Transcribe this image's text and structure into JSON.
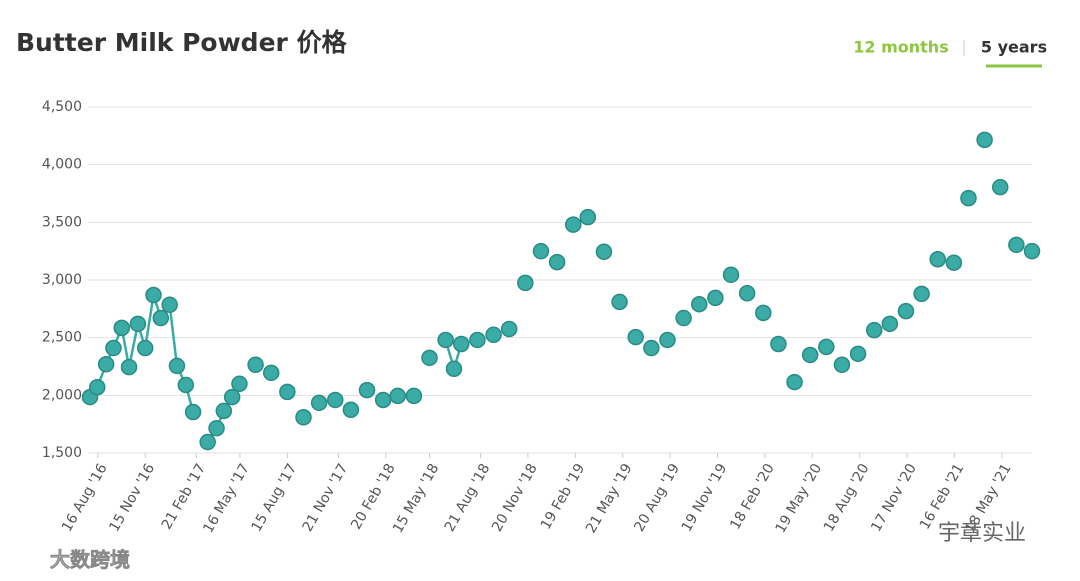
{
  "chart_data": {
    "type": "scatter-line",
    "title": "Butter Milk Powder 价格",
    "toggles": [
      "12 months",
      "5 years"
    ],
    "watermarks": [
      "大数跨境",
      "宇章实业"
    ],
    "color": "#3aaba5",
    "x": [
      "2016-08-01",
      "2016-08-15",
      "2016-09-01",
      "2016-09-15",
      "2016-10-01",
      "2016-10-15",
      "2016-11-01",
      "2016-11-15",
      "2016-12-01",
      "2016-12-15",
      "2017-01-01",
      "2017-01-15",
      "2017-02-01",
      "2017-02-15",
      "2017-03-15",
      "2017-04-01",
      "2017-04-15",
      "2017-05-01",
      "2017-05-15",
      "2017-06-15",
      "2017-07-15",
      "2017-08-15",
      "2017-09-15",
      "2017-10-15",
      "2017-11-15",
      "2017-12-15",
      "2018-01-15",
      "2018-02-15",
      "2018-03-15",
      "2018-04-15",
      "2018-05-15",
      "2018-06-15",
      "2018-07-01",
      "2018-07-15",
      "2018-08-15",
      "2018-09-15",
      "2018-10-15",
      "2018-11-15",
      "2018-12-15",
      "2019-01-15",
      "2019-02-15",
      "2019-03-15",
      "2019-04-15",
      "2019-05-15",
      "2019-06-15",
      "2019-07-15",
      "2019-08-15",
      "2019-09-15",
      "2019-10-15",
      "2019-11-15",
      "2019-12-15",
      "2020-01-15",
      "2020-02-15",
      "2020-03-15",
      "2020-04-15",
      "2020-05-15",
      "2020-06-15",
      "2020-07-15",
      "2020-08-15",
      "2020-09-15",
      "2020-10-15",
      "2020-11-15",
      "2020-12-15",
      "2021-01-15",
      "2021-02-15",
      "2021-03-15",
      "2021-04-15",
      "2021-05-15",
      "2021-06-15",
      "2021-07-15"
    ],
    "values": [
      1985,
      2070,
      2270,
      2410,
      2585,
      2245,
      2620,
      2410,
      2870,
      2670,
      2785,
      2255,
      2090,
      1855,
      1595,
      1715,
      1865,
      1985,
      2100,
      2265,
      2195,
      2030,
      1810,
      1935,
      1960,
      1875,
      2045,
      1960,
      1995,
      1995,
      2325,
      2480,
      2230,
      2445,
      2480,
      2525,
      2575,
      2975,
      3250,
      3155,
      3480,
      3545,
      3245,
      2810,
      2505,
      2410,
      2480,
      2670,
      2790,
      2845,
      3045,
      2885,
      2715,
      2445,
      2115,
      2350,
      2420,
      2265,
      2360,
      2565,
      2620,
      2730,
      2880,
      3180,
      3150,
      3710,
      4215,
      3805,
      3305,
      3250
    ],
    "xlim": [
      "2016-08-01",
      "2021-07-15"
    ],
    "xticks": [
      {
        "value": "2016-08-16",
        "label": "16 Aug '16"
      },
      {
        "value": "2016-11-15",
        "label": "15 Nov '16"
      },
      {
        "value": "2017-02-21",
        "label": "21 Feb '17"
      },
      {
        "value": "2017-05-16",
        "label": "16 May '17"
      },
      {
        "value": "2017-08-15",
        "label": "15 Aug '17"
      },
      {
        "value": "2017-11-21",
        "label": "21 Nov '17"
      },
      {
        "value": "2018-02-20",
        "label": "20 Feb '18"
      },
      {
        "value": "2018-05-15",
        "label": "15 May '18"
      },
      {
        "value": "2018-08-21",
        "label": "21 Aug '18"
      },
      {
        "value": "2018-11-20",
        "label": "20 Nov '18"
      },
      {
        "value": "2019-02-19",
        "label": "19 Feb '19"
      },
      {
        "value": "2019-05-21",
        "label": "21 May '19"
      },
      {
        "value": "2019-08-20",
        "label": "20 Aug '19"
      },
      {
        "value": "2019-11-19",
        "label": "19 Nov '19"
      },
      {
        "value": "2020-02-18",
        "label": "18 Feb '20"
      },
      {
        "value": "2020-05-19",
        "label": "19 May '20"
      },
      {
        "value": "2020-08-18",
        "label": "18 Aug '20"
      },
      {
        "value": "2020-11-17",
        "label": "17 Nov '20"
      },
      {
        "value": "2021-02-16",
        "label": "16 Feb '21"
      },
      {
        "value": "2021-05-18",
        "label": "18 May '21"
      }
    ],
    "ylim": [
      1500,
      4500
    ],
    "yticks": [
      {
        "value": 1500,
        "label": "1,500"
      },
      {
        "value": 2000,
        "label": "2,000"
      },
      {
        "value": 2500,
        "label": "2,500"
      },
      {
        "value": 3000,
        "label": "3,000"
      },
      {
        "value": 3500,
        "label": "3,500"
      },
      {
        "value": 4000,
        "label": "4,000"
      },
      {
        "value": 4500,
        "label": "4,500"
      }
    ],
    "grid": true
  }
}
